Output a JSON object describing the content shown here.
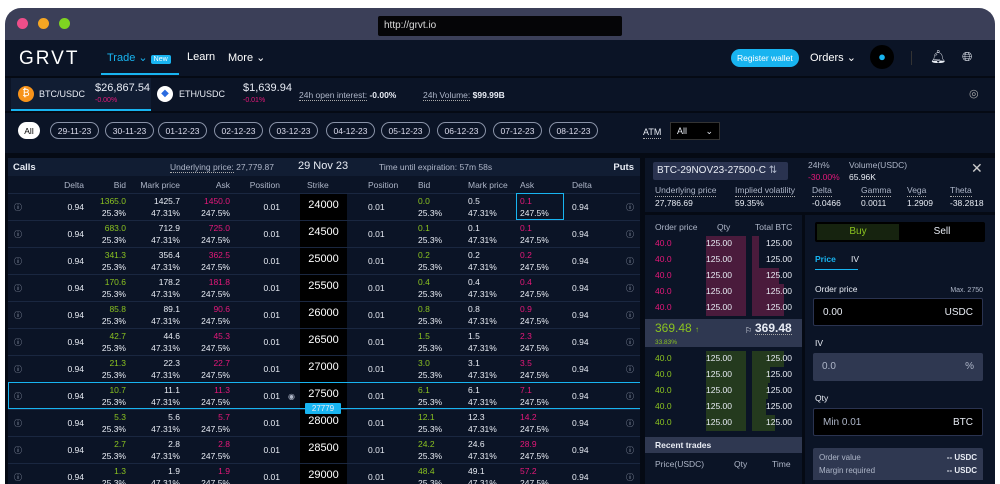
{
  "browser": {
    "url": "http://grvt.io"
  },
  "nav": {
    "logo": "GRVT",
    "trade": "Trade",
    "new_badge": "New",
    "learn": "Learn",
    "more": "More",
    "register": "Register wallet",
    "orders": "Orders"
  },
  "ticker": {
    "btc_pair": "BTC/USDC",
    "btc_price": "$26,867.54",
    "btc_change": "-0.00%",
    "eth_pair": "ETH/USDC",
    "eth_price": "$1,639.94",
    "eth_change": "-0.01%",
    "oi_label": "24h open interest:",
    "oi_value": "-0.00%",
    "vol_label": "24h Volume:",
    "vol_value": "$99.99B"
  },
  "dates": {
    "items": [
      "All",
      "29-11-23",
      "30-11-23",
      "01-12-23",
      "02-12-23",
      "03-12-23",
      "04-12-23",
      "05-12-23",
      "06-12-23",
      "07-12-23",
      "08-12-23"
    ],
    "atm_label": "ATM",
    "atm_value": "All"
  },
  "chain": {
    "calls": "Calls",
    "puts": "Puts",
    "underlying_label": "Underlying price:",
    "underlying": "27,779.87",
    "date": "29 Nov 23",
    "expiry_label": "Time until expiration:",
    "expiry": "57m 58s",
    "current_price_marker": "27779",
    "headers": {
      "delta": "Delta",
      "bid": "Bid",
      "mark": "Mark price",
      "ask": "Ask",
      "position": "Position",
      "strike": "Strike"
    },
    "rows": [
      {
        "strike": "24000",
        "c_delta": "0.94",
        "c_bid": "1365.0",
        "c_mark": "1425.7",
        "c_ask": "1450.0",
        "c_pos": "0.01",
        "p_pos": "0.01",
        "p_bid": "0.0",
        "p_mark": "0.5",
        "p_ask": "0.1",
        "p_delta": "0.94"
      },
      {
        "strike": "24500",
        "c_delta": "0.94",
        "c_bid": "683.0",
        "c_mark": "712.9",
        "c_ask": "725.0",
        "c_pos": "0.01",
        "p_pos": "0.01",
        "p_bid": "0.1",
        "p_mark": "0.1",
        "p_ask": "0.1",
        "p_delta": "0.94"
      },
      {
        "strike": "25000",
        "c_delta": "0.94",
        "c_bid": "341.3",
        "c_mark": "356.4",
        "c_ask": "362.5",
        "c_pos": "0.01",
        "p_pos": "0.01",
        "p_bid": "0.2",
        "p_mark": "0.2",
        "p_ask": "0.2",
        "p_delta": "0.94"
      },
      {
        "strike": "25500",
        "c_delta": "0.94",
        "c_bid": "170.6",
        "c_mark": "178.2",
        "c_ask": "181.8",
        "c_pos": "0.01",
        "p_pos": "0.01",
        "p_bid": "0.4",
        "p_mark": "0.4",
        "p_ask": "0.4",
        "p_delta": "0.94"
      },
      {
        "strike": "26000",
        "c_delta": "0.94",
        "c_bid": "85.8",
        "c_mark": "89.1",
        "c_ask": "90.6",
        "c_pos": "0.01",
        "p_pos": "0.01",
        "p_bid": "0.8",
        "p_mark": "0.8",
        "p_ask": "0.9",
        "p_delta": "0.94"
      },
      {
        "strike": "26500",
        "c_delta": "0.94",
        "c_bid": "42.7",
        "c_mark": "44.6",
        "c_ask": "45.3",
        "c_pos": "0.01",
        "p_pos": "0.01",
        "p_bid": "1.5",
        "p_mark": "1.5",
        "p_ask": "2.3",
        "p_delta": "0.94"
      },
      {
        "strike": "27000",
        "c_delta": "0.94",
        "c_bid": "21.3",
        "c_mark": "22.3",
        "c_ask": "22.7",
        "c_pos": "0.01",
        "p_pos": "0.01",
        "p_bid": "3.0",
        "p_mark": "3.1",
        "p_ask": "3.5",
        "p_delta": "0.94"
      },
      {
        "strike": "27500",
        "c_delta": "0.94",
        "c_bid": "10.7",
        "c_mark": "11.1",
        "c_ask": "11.3",
        "c_pos": "0.01",
        "p_pos": "0.01",
        "p_bid": "6.1",
        "p_mark": "6.1",
        "p_ask": "7.1",
        "p_delta": "0.94"
      },
      {
        "strike": "28000",
        "c_delta": "0.94",
        "c_bid": "5.3",
        "c_mark": "5.6",
        "c_ask": "5.7",
        "c_pos": "0.01",
        "p_pos": "0.01",
        "p_bid": "12.1",
        "p_mark": "12.3",
        "p_ask": "14.2",
        "p_delta": "0.94"
      },
      {
        "strike": "28500",
        "c_delta": "0.94",
        "c_bid": "2.7",
        "c_mark": "2.8",
        "c_ask": "2.8",
        "c_pos": "0.01",
        "p_pos": "0.01",
        "p_bid": "24.2",
        "p_mark": "24.6",
        "p_ask": "28.9",
        "p_delta": "0.94"
      },
      {
        "strike": "29000",
        "c_delta": "0.94",
        "c_bid": "1.3",
        "c_mark": "1.9",
        "c_ask": "1.9",
        "c_pos": "0.01",
        "p_pos": "0.01",
        "p_bid": "48.4",
        "p_mark": "49.1",
        "p_ask": "57.2",
        "p_delta": "0.94"
      }
    ],
    "bid_iv": "25.3%",
    "mark_iv": "47.31%",
    "ask_iv": "247.5%"
  },
  "contract": {
    "name": "BTC-29NOV23-27500-C",
    "change_label": "24h%",
    "change": "-30.00%",
    "volume_label": "Volume(USDC)",
    "volume": "65.96K",
    "stats": [
      {
        "label": "Underlying price",
        "value": "27,786.69"
      },
      {
        "label": "Implied volatility",
        "value": "59.35%"
      },
      {
        "label": "Delta",
        "value": "-0.0466"
      },
      {
        "label": "Gamma",
        "value": "0.0011"
      },
      {
        "label": "Vega",
        "value": "1.2909"
      },
      {
        "label": "Theta",
        "value": "-38.2818"
      }
    ]
  },
  "book": {
    "h_price": "Order price",
    "h_qty": "Qty",
    "h_total": "Total BTC",
    "asks": [
      {
        "price": "40.0",
        "qty": "125.00",
        "total": "125.00"
      },
      {
        "price": "40.0",
        "qty": "125.00",
        "total": "125.00"
      },
      {
        "price": "40.0",
        "qty": "125.00",
        "total": "125.00"
      },
      {
        "price": "40.0",
        "qty": "125.00",
        "total": "125.00"
      },
      {
        "price": "40.0",
        "qty": "125.00",
        "total": "125.00"
      }
    ],
    "last": "369.48",
    "last_pct": "33.83%",
    "mark": "369.48",
    "bids": [
      {
        "price": "40.0",
        "qty": "125.00",
        "total": "125.00"
      },
      {
        "price": "40.0",
        "qty": "125.00",
        "total": "125.00"
      },
      {
        "price": "40.0",
        "qty": "125.00",
        "total": "125.00"
      },
      {
        "price": "40.0",
        "qty": "125.00",
        "total": "125.00"
      },
      {
        "price": "40.0",
        "qty": "125.00",
        "total": "125.00"
      }
    ],
    "recent": "Recent trades",
    "r_price": "Price(USDC)",
    "r_qty": "Qty",
    "r_time": "Time"
  },
  "form": {
    "buy": "Buy",
    "sell": "Sell",
    "tab_price": "Price",
    "tab_iv": "IV",
    "price_label": "Order price",
    "max": "Max. 2750",
    "price_value": "0.00",
    "price_unit": "USDC",
    "iv_label": "IV",
    "iv_value": "0.0",
    "iv_unit": "%",
    "qty_label": "Qty",
    "qty_placeholder": "Min 0.01",
    "qty_unit": "BTC",
    "order_value_label": "Order value",
    "order_value": "-- USDC",
    "margin_label": "Margin required",
    "margin": "-- USDC"
  },
  "colors": {
    "accent": "#18b4f0",
    "bid": "#8bc320",
    "ask": "#e5187a",
    "bg": "#0b1426"
  }
}
